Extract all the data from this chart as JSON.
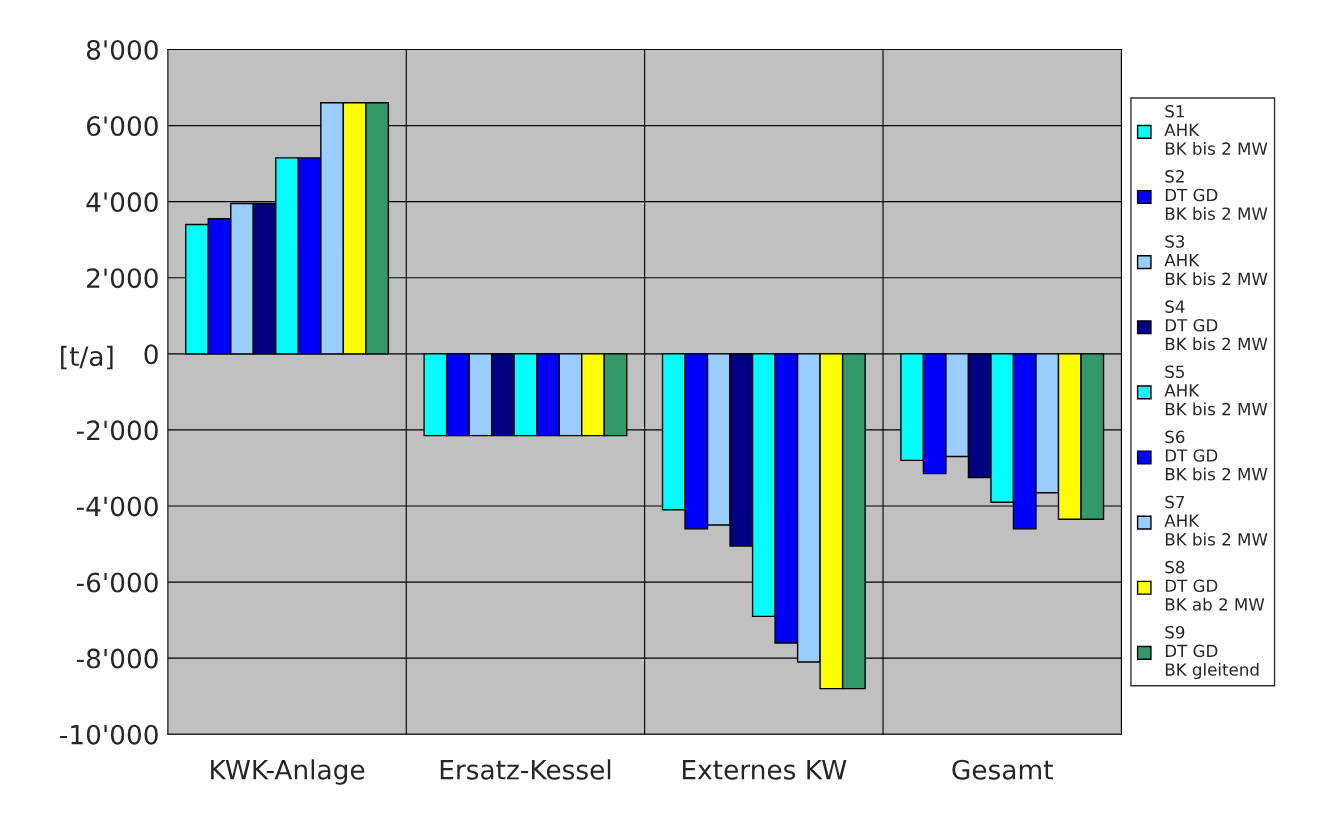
{
  "chart_data": {
    "type": "bar",
    "ylabel": "[t/a]",
    "categories": [
      "KWK-Anlage",
      "Ersatz-Kessel",
      "Externes KW",
      "Gesamt"
    ],
    "series": [
      {
        "name": "S1\nAHK\nBK bis 2 MW",
        "color": "#00ffff",
        "values": [
          3400,
          -2150,
          -4100,
          -2800
        ]
      },
      {
        "name": "S2\nDT GD\nBK bis 2 MW",
        "color": "#0000ff",
        "values": [
          3550,
          -2150,
          -4600,
          -3150
        ]
      },
      {
        "name": "S3\nAHK\nBK bis 2 MW",
        "color": "#99ccff",
        "values": [
          3950,
          -2150,
          -4500,
          -2700
        ]
      },
      {
        "name": "S4\nDT GD\nBK bis 2 MW",
        "color": "#000080",
        "values": [
          3950,
          -2150,
          -5050,
          -3250
        ]
      },
      {
        "name": "S5\nAHK\nBK bis 2 MW",
        "color": "#00ffff",
        "values": [
          5150,
          -2150,
          -6900,
          -3900
        ]
      },
      {
        "name": "S6\nDT GD\nBK bis 2 MW",
        "color": "#0000ff",
        "values": [
          5150,
          -2150,
          -7600,
          -4600
        ]
      },
      {
        "name": "S7\nAHK\nBK bis 2 MW",
        "color": "#99ccff",
        "values": [
          6600,
          -2150,
          -8100,
          -3650
        ]
      },
      {
        "name": "S8\nDT GD\nBK ab 2 MW",
        "color": "#ffff00",
        "values": [
          6600,
          -2150,
          -8800,
          -4350
        ]
      },
      {
        "name": "S9\nDT GD\nBK gleitend",
        "color": "#339966",
        "values": [
          6600,
          -2150,
          -8800,
          -4350
        ]
      }
    ],
    "ylim": [
      -10000,
      8000
    ],
    "yticks": [
      {
        "value": -10000,
        "label": "-10'000"
      },
      {
        "value": -8000,
        "label": "-8'000"
      },
      {
        "value": -6000,
        "label": "-6'000"
      },
      {
        "value": -4000,
        "label": "-4'000"
      },
      {
        "value": -2000,
        "label": "-2'000"
      },
      0,
      {
        "value": 2000,
        "label": "2'000"
      },
      {
        "value": 4000,
        "label": "4'000"
      },
      {
        "value": 6000,
        "label": "6'000"
      },
      {
        "value": 8000,
        "label": "8'000"
      }
    ],
    "grid": true,
    "legend": "right"
  }
}
